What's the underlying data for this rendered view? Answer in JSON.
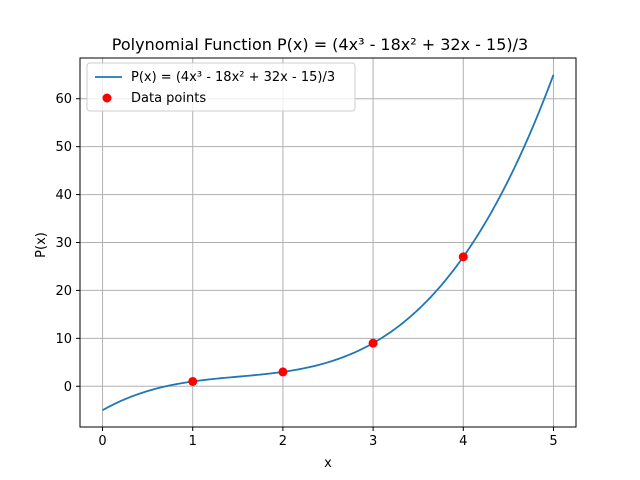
{
  "chart_data": {
    "type": "line",
    "title": "Polynomial Function P(x) = (4x³ - 18x² + 32x - 15)/3",
    "xlabel": "x",
    "ylabel": "P(x)",
    "xlim": [
      -0.25,
      5.25
    ],
    "ylim": [
      -8.5,
      68.5
    ],
    "x_ticks": [
      0,
      1,
      2,
      3,
      4,
      5
    ],
    "y_ticks": [
      0,
      10,
      20,
      30,
      40,
      50,
      60
    ],
    "grid": true,
    "legend_position": "top-left",
    "series": [
      {
        "name": "P(x) = (4x³ - 18x² + 32x - 15)/3",
        "kind": "line",
        "color": "#1f77b4",
        "coefficients": [
          4,
          -18,
          32,
          -15
        ],
        "divisor": 3,
        "x_range": [
          0,
          5
        ]
      },
      {
        "name": "Data points",
        "kind": "scatter",
        "color": "#ff0000",
        "x": [
          1,
          2,
          3,
          4
        ],
        "y": [
          1,
          3,
          9,
          27
        ]
      }
    ]
  }
}
